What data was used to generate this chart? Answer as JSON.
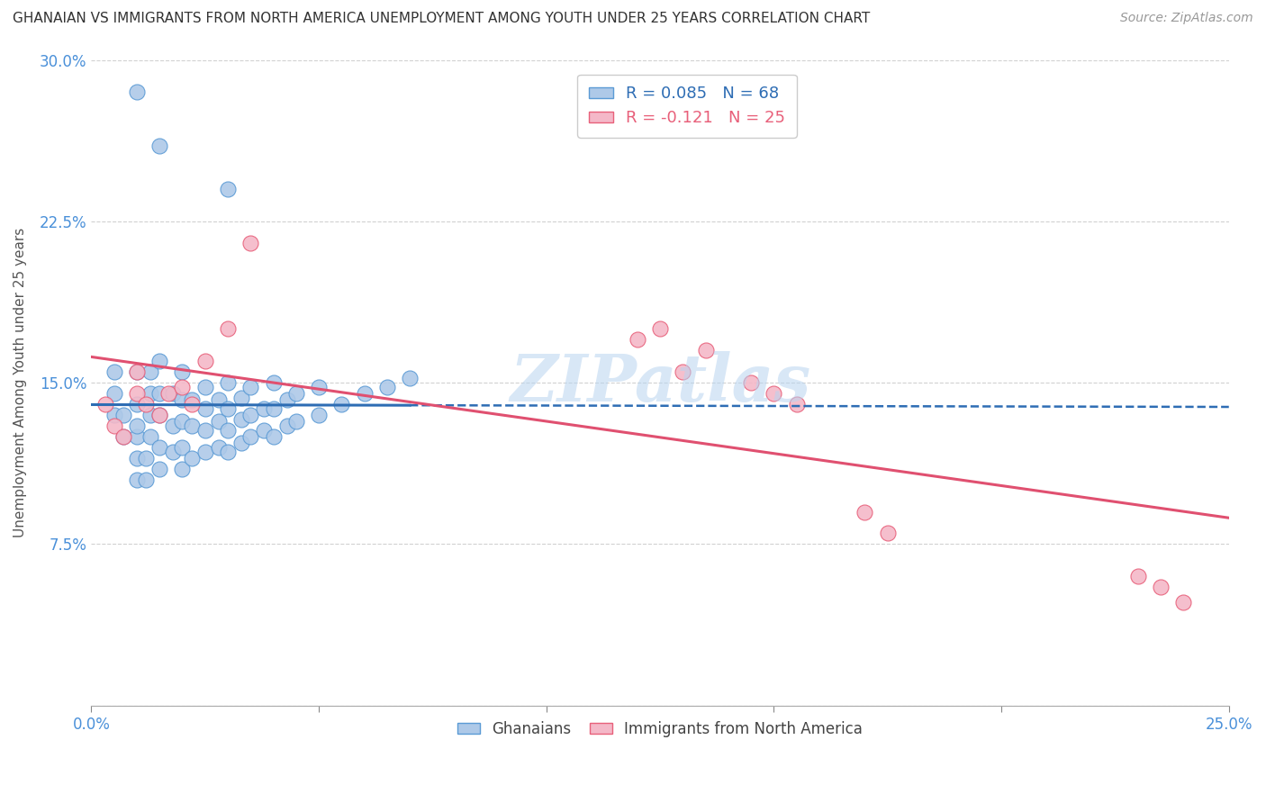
{
  "title": "GHANAIAN VS IMMIGRANTS FROM NORTH AMERICA UNEMPLOYMENT AMONG YOUTH UNDER 25 YEARS CORRELATION CHART",
  "source": "Source: ZipAtlas.com",
  "ylabel": "Unemployment Among Youth under 25 years",
  "xlabel": "",
  "xlim": [
    0.0,
    0.25
  ],
  "ylim": [
    0.0,
    0.3
  ],
  "xticks": [
    0.0,
    0.05,
    0.1,
    0.15,
    0.2,
    0.25
  ],
  "yticks": [
    0.0,
    0.075,
    0.15,
    0.225,
    0.3
  ],
  "xtick_labels_left": "0.0%",
  "xtick_labels_right": "25.0%",
  "ytick_labels": [
    "",
    "7.5%",
    "15.0%",
    "22.5%",
    "30.0%"
  ],
  "R_blue": 0.085,
  "N_blue": 68,
  "R_pink": -0.121,
  "N_pink": 25,
  "blue_scatter_color": "#aec9e8",
  "blue_edge_color": "#5b9bd5",
  "pink_scatter_color": "#f4b8c8",
  "pink_edge_color": "#e8607a",
  "blue_line_color": "#2e6db4",
  "pink_line_color": "#e05070",
  "background_color": "#ffffff",
  "watermark": "ZIPatlas",
  "ghanaian_x": [
    0.005,
    0.005,
    0.005,
    0.007,
    0.007,
    0.01,
    0.01,
    0.01,
    0.01,
    0.01,
    0.01,
    0.012,
    0.012,
    0.013,
    0.013,
    0.013,
    0.013,
    0.015,
    0.015,
    0.015,
    0.015,
    0.015,
    0.018,
    0.018,
    0.018,
    0.02,
    0.02,
    0.02,
    0.02,
    0.02,
    0.022,
    0.022,
    0.022,
    0.025,
    0.025,
    0.025,
    0.025,
    0.028,
    0.028,
    0.028,
    0.03,
    0.03,
    0.03,
    0.03,
    0.033,
    0.033,
    0.033,
    0.035,
    0.035,
    0.035,
    0.038,
    0.038,
    0.04,
    0.04,
    0.04,
    0.043,
    0.043,
    0.045,
    0.045,
    0.05,
    0.05,
    0.055,
    0.06,
    0.065,
    0.07,
    0.01,
    0.015,
    0.03
  ],
  "ghanaian_y": [
    0.135,
    0.145,
    0.155,
    0.125,
    0.135,
    0.105,
    0.115,
    0.125,
    0.13,
    0.14,
    0.155,
    0.105,
    0.115,
    0.125,
    0.135,
    0.145,
    0.155,
    0.11,
    0.12,
    0.135,
    0.145,
    0.16,
    0.118,
    0.13,
    0.145,
    0.11,
    0.12,
    0.132,
    0.142,
    0.155,
    0.115,
    0.13,
    0.142,
    0.118,
    0.128,
    0.138,
    0.148,
    0.12,
    0.132,
    0.142,
    0.118,
    0.128,
    0.138,
    0.15,
    0.122,
    0.133,
    0.143,
    0.125,
    0.135,
    0.148,
    0.128,
    0.138,
    0.125,
    0.138,
    0.15,
    0.13,
    0.142,
    0.132,
    0.145,
    0.135,
    0.148,
    0.14,
    0.145,
    0.148,
    0.152,
    0.285,
    0.26,
    0.24
  ],
  "immigrant_x": [
    0.003,
    0.005,
    0.007,
    0.01,
    0.01,
    0.012,
    0.015,
    0.017,
    0.02,
    0.022,
    0.025,
    0.03,
    0.035,
    0.12,
    0.125,
    0.13,
    0.135,
    0.145,
    0.15,
    0.155,
    0.17,
    0.175,
    0.23,
    0.235,
    0.24
  ],
  "immigrant_y": [
    0.14,
    0.13,
    0.125,
    0.145,
    0.155,
    0.14,
    0.135,
    0.145,
    0.148,
    0.14,
    0.16,
    0.175,
    0.215,
    0.17,
    0.175,
    0.155,
    0.165,
    0.15,
    0.145,
    0.14,
    0.09,
    0.08,
    0.06,
    0.055,
    0.048
  ]
}
